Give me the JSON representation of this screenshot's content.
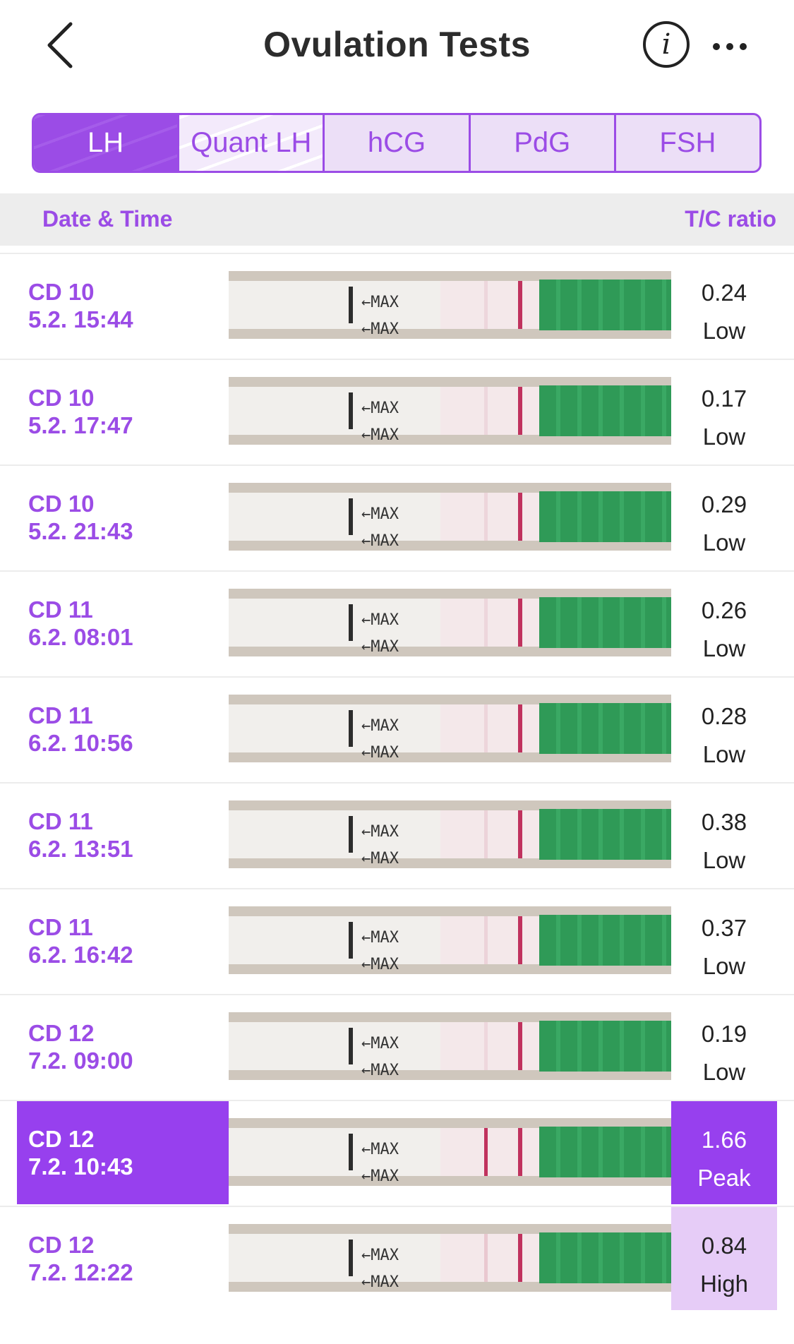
{
  "header": {
    "title": "Ovulation Tests"
  },
  "tabs": [
    {
      "label": "LH",
      "active": true
    },
    {
      "label": "Quant LH",
      "active": false
    },
    {
      "label": "hCG",
      "active": false
    },
    {
      "label": "PdG",
      "active": false
    },
    {
      "label": "FSH",
      "active": false
    }
  ],
  "columns": {
    "left": "Date & Time",
    "right": "T/C ratio"
  },
  "strip_text": "←MAX",
  "rows": [
    {
      "cd": "CD 10",
      "datetime": "5.2. 15:44",
      "ratio": "0.24",
      "level": "Low"
    },
    {
      "cd": "CD 10",
      "datetime": "5.2. 17:47",
      "ratio": "0.17",
      "level": "Low"
    },
    {
      "cd": "CD 10",
      "datetime": "5.2. 21:43",
      "ratio": "0.29",
      "level": "Low"
    },
    {
      "cd": "CD 11",
      "datetime": "6.2. 08:01",
      "ratio": "0.26",
      "level": "Low"
    },
    {
      "cd": "CD 11",
      "datetime": "6.2. 10:56",
      "ratio": "0.28",
      "level": "Low"
    },
    {
      "cd": "CD 11",
      "datetime": "6.2. 13:51",
      "ratio": "0.38",
      "level": "Low"
    },
    {
      "cd": "CD 11",
      "datetime": "6.2. 16:42",
      "ratio": "0.37",
      "level": "Low"
    },
    {
      "cd": "CD 12",
      "datetime": "7.2. 09:00",
      "ratio": "0.19",
      "level": "Low"
    },
    {
      "cd": "CD 12",
      "datetime": "7.2. 10:43",
      "ratio": "1.66",
      "level": "Peak",
      "selected": true
    },
    {
      "cd": "CD 12",
      "datetime": "7.2. 12:22",
      "ratio": "0.84",
      "level": "High"
    }
  ],
  "colors": {
    "accent": "#9740ee",
    "high_bg": "#e6ccf7",
    "header_bg": "#ededed"
  }
}
